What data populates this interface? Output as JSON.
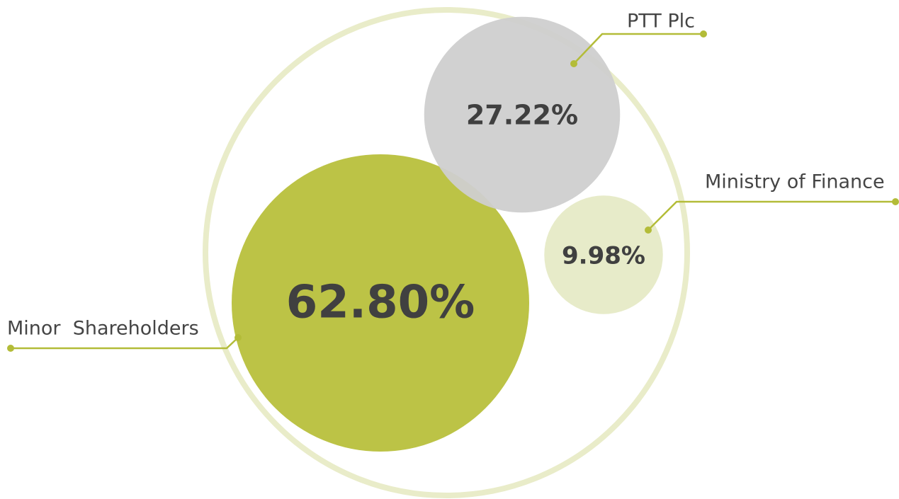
{
  "chart_data": {
    "type": "bubble",
    "categories": [
      "Minor  Shareholders",
      "PTT Plc",
      "Ministry of Finance"
    ],
    "values": [
      62.8,
      27.22,
      9.98
    ],
    "value_labels": [
      "62.80%",
      "27.22%",
      "9.98%"
    ],
    "colors": [
      "#b8c03c",
      "#cfcfcf",
      "#e6eac6"
    ],
    "ring_color": "#e9ecc9",
    "leader_color": "#b3bc38"
  }
}
